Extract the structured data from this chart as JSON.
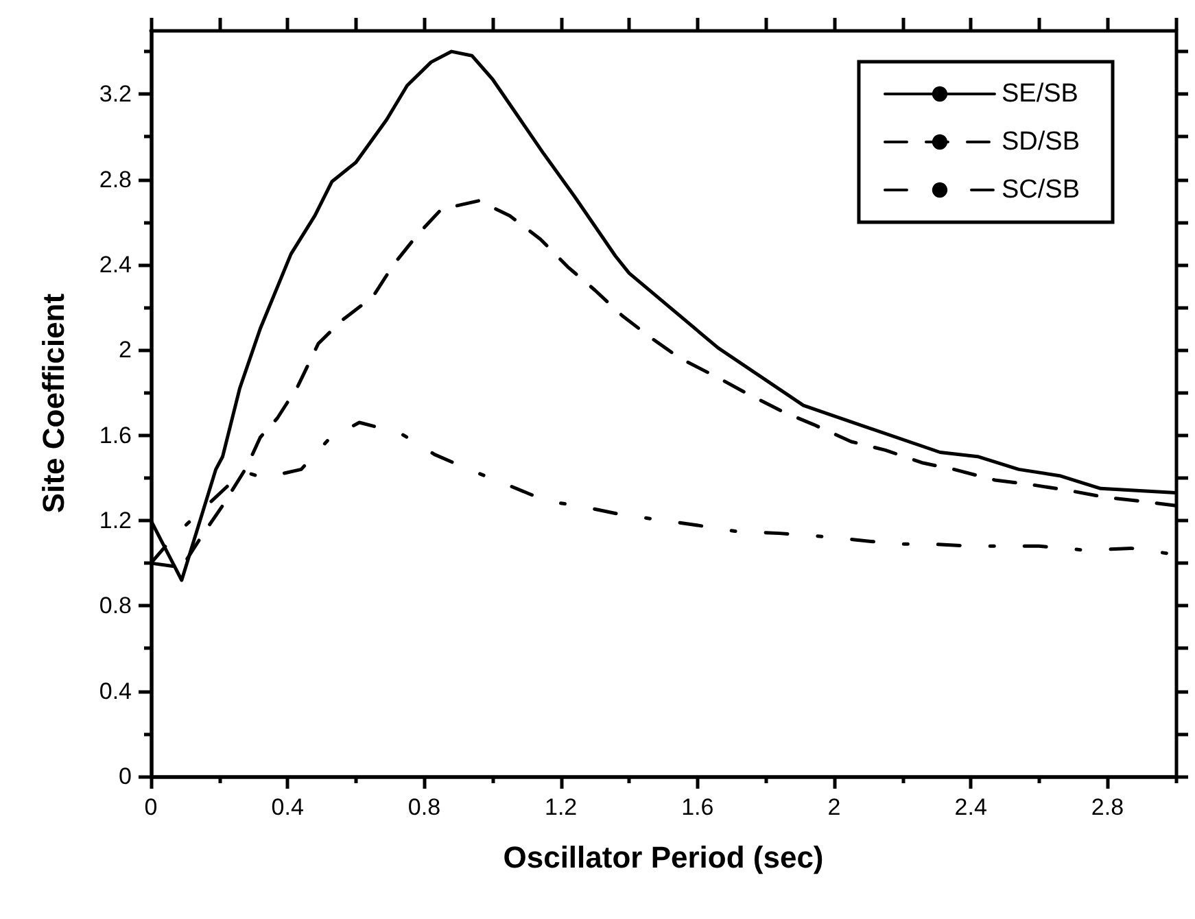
{
  "chart_data": {
    "type": "line",
    "xlabel": "Oscillator Period (sec)",
    "ylabel": "Site Coefficient",
    "xlim": [
      0,
      3
    ],
    "xticks": [
      0,
      0.4,
      0.8,
      1.2,
      1.6,
      2,
      2.4,
      2.8
    ],
    "ylim": [
      0,
      3.5
    ],
    "yticks": [
      0,
      0.4,
      0.8,
      1.2,
      1.6,
      2,
      2.4,
      2.8,
      3.2
    ],
    "grid": false,
    "legend": "top right",
    "marker": "none",
    "series": [
      {
        "name": "SE/SB",
        "color": "#000000",
        "line_style": "solid",
        "x": [
          0,
          0.09,
          0.19,
          0.21,
          0.26,
          0.32,
          0.41,
          0.48,
          0.53,
          0.6,
          0.69,
          0.75,
          0.82,
          0.88,
          0.94,
          1.0,
          1.15,
          1.24,
          1.36,
          1.4,
          1.66,
          1.91,
          2.0,
          2.31,
          2.42,
          2.54,
          2.66,
          2.78,
          3.0
        ],
        "values": [
          1.2,
          0.92,
          1.44,
          1.5,
          1.82,
          2.1,
          2.45,
          2.63,
          2.79,
          2.88,
          3.08,
          3.24,
          3.35,
          3.4,
          3.38,
          3.27,
          2.92,
          2.72,
          2.44,
          2.36,
          2.01,
          1.74,
          1.69,
          1.52,
          1.5,
          1.44,
          1.41,
          1.35,
          1.33
        ]
      },
      {
        "name": "SD/SB",
        "color": "#000000",
        "line_style": "dashed",
        "x": [
          0,
          0.09,
          0.15,
          0.21,
          0.28,
          0.32,
          0.37,
          0.43,
          0.49,
          0.56,
          0.65,
          0.71,
          0.78,
          0.85,
          0.96,
          1.05,
          1.14,
          1.22,
          1.3,
          1.38,
          1.47,
          1.55,
          1.66,
          1.74,
          1.85,
          1.94,
          2.05,
          2.15,
          2.26,
          2.35,
          2.47,
          2.57,
          2.69,
          2.79,
          2.9,
          3.0
        ],
        "values": [
          1.0,
          0.98,
          1.13,
          1.27,
          1.45,
          1.59,
          1.68,
          1.83,
          2.03,
          2.14,
          2.25,
          2.4,
          2.54,
          2.66,
          2.7,
          2.63,
          2.52,
          2.39,
          2.28,
          2.16,
          2.05,
          1.96,
          1.87,
          1.8,
          1.71,
          1.65,
          1.57,
          1.53,
          1.47,
          1.44,
          1.39,
          1.37,
          1.34,
          1.31,
          1.29,
          1.27
        ]
      },
      {
        "name": "SC/SB",
        "color": "#000000",
        "line_style": "dashdot",
        "x": [
          0,
          0.07,
          0.27,
          0.33,
          0.44,
          0.52,
          0.61,
          0.73,
          0.83,
          0.93,
          1.04,
          1.16,
          1.25,
          1.37,
          1.5,
          1.59,
          1.71,
          1.84,
          1.93,
          2.06,
          2.18,
          2.28,
          2.4,
          2.6,
          2.74,
          2.87,
          3.0
        ],
        "values": [
          1.0,
          1.13,
          1.43,
          1.4,
          1.44,
          1.58,
          1.66,
          1.61,
          1.51,
          1.44,
          1.37,
          1.29,
          1.27,
          1.23,
          1.2,
          1.18,
          1.15,
          1.14,
          1.13,
          1.11,
          1.09,
          1.09,
          1.08,
          1.08,
          1.06,
          1.07,
          1.04
        ]
      }
    ]
  }
}
